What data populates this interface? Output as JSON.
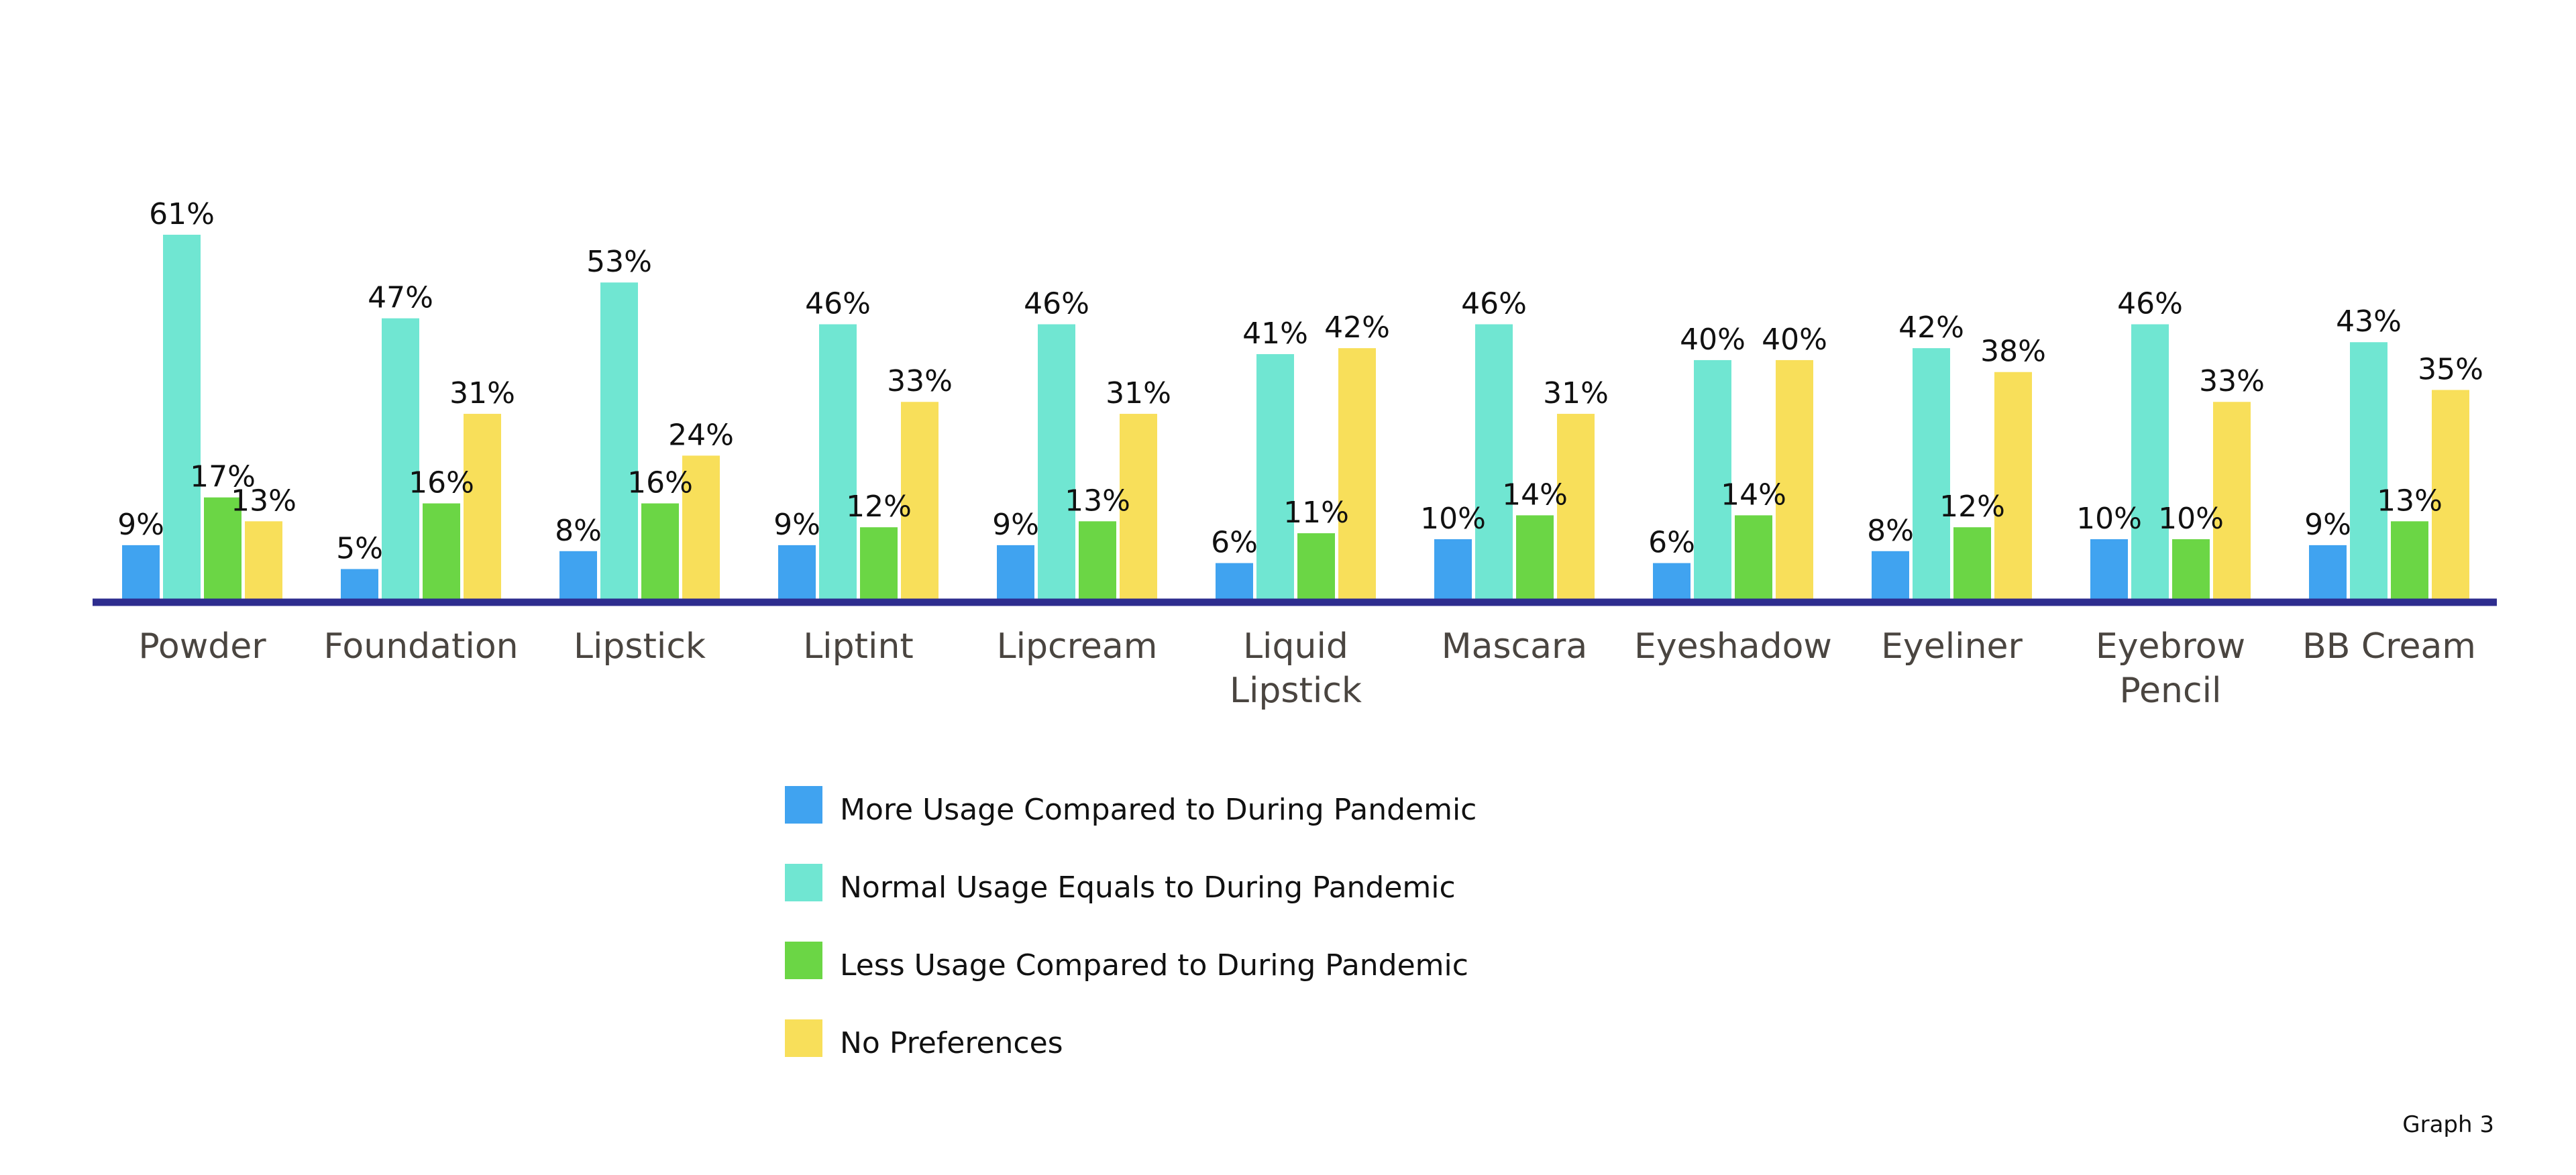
{
  "chart_data": {
    "type": "bar",
    "categories": [
      [
        "Powder"
      ],
      [
        "Foundation"
      ],
      [
        "Lipstick"
      ],
      [
        "Liptint"
      ],
      [
        "Lipcream"
      ],
      [
        "Liquid",
        "Lipstick"
      ],
      [
        "Mascara"
      ],
      [
        "Eyeshadow"
      ],
      [
        "Eyeliner"
      ],
      [
        "Eyebrow",
        "Pencil"
      ],
      [
        "BB Cream"
      ]
    ],
    "series": [
      {
        "name": "More Usage Compared to During Pandemic",
        "color": "#40a3f0",
        "values": [
          9,
          5,
          8,
          9,
          9,
          6,
          10,
          6,
          8,
          10,
          9
        ],
        "labels": [
          "9%",
          "5%",
          "8%",
          "9%",
          "9%",
          "6%",
          "10%",
          "6%",
          "8%",
          "10%",
          "9%"
        ]
      },
      {
        "name": "Normal Usage Equals to During Pandemic",
        "color": "#70e6d2",
        "values": [
          61,
          47,
          53,
          46,
          46,
          41,
          46,
          40,
          42,
          46,
          43
        ],
        "labels": [
          "61%",
          "47%",
          "53%",
          "46%",
          "46%",
          "41%",
          "46%",
          "40%",
          "42%",
          "46%",
          "43%"
        ]
      },
      {
        "name": "Less Usage Compared to During Pandemic",
        "color": "#6bd645",
        "values": [
          17,
          16,
          16,
          12,
          13,
          11,
          14,
          14,
          12,
          10,
          13
        ],
        "labels": [
          "17%",
          "16%",
          "16%",
          "12%",
          "13%",
          "11%",
          "14%",
          "14%",
          "12%",
          "10%",
          "13%"
        ]
      },
      {
        "name": "No Preferences",
        "color": "#f8df5a",
        "values": [
          13,
          31,
          24,
          33,
          31,
          42,
          31,
          40,
          38,
          33,
          35
        ],
        "labels": [
          "13%",
          "31%",
          "24%",
          "33%",
          "31%",
          "42%",
          "31%",
          "40%",
          "38%",
          "33%",
          "35%"
        ]
      }
    ],
    "ylim": [
      0,
      61
    ],
    "grid": false,
    "legend_position": "bottom-center",
    "baseline_color": "#2e2d8f",
    "footer": "Graph 3"
  }
}
